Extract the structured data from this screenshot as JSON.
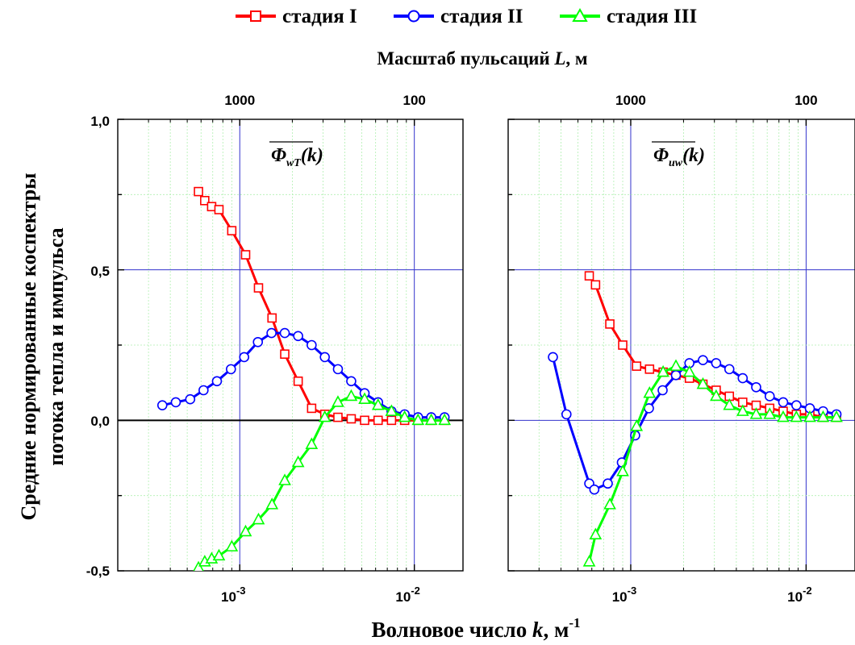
{
  "legend": [
    {
      "label": "стадия I",
      "color": "#ff0000",
      "marker": "square"
    },
    {
      "label": "стадия II",
      "color": "#0000ff",
      "marker": "circle"
    },
    {
      "label": "стадия III",
      "color": "#00ff00",
      "marker": "triangle"
    }
  ],
  "top_axis_label": "Масштаб пульсаций L, м",
  "top_axis_label_plain": "Масштаб пульсаций ",
  "top_axis_label_var": "L",
  "top_axis_label_unit": ", м",
  "top_ticks": [
    "1000",
    "100"
  ],
  "x_label_plain": "Волновое число ",
  "x_label_var": "k",
  "x_label_unit": ", м",
  "x_label_exp": "-1",
  "y_label_line1": "Средние нормированные коспектры",
  "y_label_line2": "потока тепла и импульса",
  "y_ticks": [
    "1,0",
    "0,5",
    "0,0",
    "-0,5"
  ],
  "x_tick_labels": [
    {
      "base": "10",
      "exp": "-3"
    },
    {
      "base": "10",
      "exp": "-2"
    }
  ],
  "chart_data": [
    {
      "type": "line",
      "panel_label": "Φ_wT(k)",
      "xscale": "log",
      "xlim": [
        0.0002,
        0.019
      ],
      "ylim": [
        -0.5,
        1.0
      ],
      "grid": true,
      "series": [
        {
          "name": "стадия I",
          "color": "#ff0000",
          "marker": "square",
          "x": [
            0.00058,
            0.00063,
            0.00069,
            0.00076,
            0.0009,
            0.00108,
            0.00128,
            0.00153,
            0.00181,
            0.00216,
            0.00258,
            0.00307,
            0.00365,
            0.00435,
            0.00519,
            0.0062,
            0.0074,
            0.0088,
            0.0105,
            0.0125,
            0.0149
          ],
          "y": [
            0.76,
            0.73,
            0.71,
            0.7,
            0.63,
            0.55,
            0.44,
            0.34,
            0.22,
            0.13,
            0.04,
            0.02,
            0.01,
            0.005,
            0.0,
            0.0,
            0.0,
            0.0,
            0.0,
            0.0,
            0.0
          ]
        },
        {
          "name": "стадия II",
          "color": "#0000ff",
          "marker": "circle",
          "x": [
            0.00036,
            0.00043,
            0.00052,
            0.00062,
            0.00074,
            0.00089,
            0.00106,
            0.00127,
            0.00152,
            0.00181,
            0.00216,
            0.00258,
            0.00307,
            0.00365,
            0.00435,
            0.00519,
            0.0062,
            0.0074,
            0.0088,
            0.0105,
            0.0125,
            0.0149
          ],
          "y": [
            0.05,
            0.06,
            0.07,
            0.1,
            0.13,
            0.17,
            0.21,
            0.26,
            0.29,
            0.29,
            0.28,
            0.25,
            0.21,
            0.17,
            0.13,
            0.09,
            0.06,
            0.03,
            0.02,
            0.01,
            0.01,
            0.01
          ]
        },
        {
          "name": "стадия III",
          "color": "#00ff00",
          "marker": "triangle",
          "x": [
            0.00058,
            0.00063,
            0.00069,
            0.00076,
            0.0009,
            0.00108,
            0.00128,
            0.00153,
            0.00181,
            0.00216,
            0.00258,
            0.00307,
            0.00365,
            0.00435,
            0.00519,
            0.0062,
            0.0074,
            0.0088,
            0.0105,
            0.0125,
            0.0149
          ],
          "y": [
            -0.49,
            -0.47,
            -0.46,
            -0.45,
            -0.42,
            -0.37,
            -0.33,
            -0.28,
            -0.2,
            -0.14,
            -0.08,
            0.01,
            0.06,
            0.08,
            0.07,
            0.05,
            0.03,
            0.01,
            0.0,
            0.0,
            0.0
          ]
        }
      ]
    },
    {
      "type": "line",
      "panel_label": "Φ_uw(k)",
      "xscale": "log",
      "xlim": [
        0.0002,
        0.019
      ],
      "ylim": [
        -0.5,
        1.0
      ],
      "grid": true,
      "series": [
        {
          "name": "стадия I",
          "color": "#ff0000",
          "marker": "square",
          "x": [
            0.00058,
            0.00063,
            0.00076,
            0.0009,
            0.00108,
            0.00128,
            0.00153,
            0.00181,
            0.00216,
            0.00258,
            0.00307,
            0.00365,
            0.00435,
            0.00519,
            0.0062,
            0.0074,
            0.0088,
            0.0105,
            0.0125,
            0.0149
          ],
          "y": [
            0.48,
            0.45,
            0.32,
            0.25,
            0.18,
            0.17,
            0.16,
            0.15,
            0.14,
            0.12,
            0.1,
            0.08,
            0.06,
            0.05,
            0.04,
            0.03,
            0.02,
            0.02,
            0.01,
            0.01
          ]
        },
        {
          "name": "стадия II",
          "color": "#0000ff",
          "marker": "circle",
          "x": [
            0.00036,
            0.00043,
            0.00058,
            0.00062,
            0.00074,
            0.00089,
            0.00106,
            0.00127,
            0.00152,
            0.00181,
            0.00216,
            0.00258,
            0.00307,
            0.00365,
            0.00435,
            0.00519,
            0.0062,
            0.0074,
            0.0088,
            0.0105,
            0.0125,
            0.0149
          ],
          "y": [
            0.21,
            0.02,
            -0.21,
            -0.23,
            -0.21,
            -0.14,
            -0.05,
            0.04,
            0.1,
            0.15,
            0.19,
            0.2,
            0.19,
            0.17,
            0.14,
            0.11,
            0.08,
            0.06,
            0.05,
            0.04,
            0.03,
            0.02
          ]
        },
        {
          "name": "стадия III",
          "color": "#00ff00",
          "marker": "triangle",
          "x": [
            0.00058,
            0.00063,
            0.00076,
            0.0009,
            0.00108,
            0.00128,
            0.00153,
            0.00181,
            0.00216,
            0.00258,
            0.00307,
            0.00365,
            0.00435,
            0.00519,
            0.0062,
            0.0074,
            0.0088,
            0.0105,
            0.0125,
            0.0149
          ],
          "y": [
            -0.47,
            -0.38,
            -0.28,
            -0.17,
            -0.02,
            0.09,
            0.16,
            0.18,
            0.16,
            0.12,
            0.08,
            0.05,
            0.03,
            0.02,
            0.02,
            0.01,
            0.01,
            0.01,
            0.01,
            0.01
          ]
        }
      ]
    }
  ]
}
